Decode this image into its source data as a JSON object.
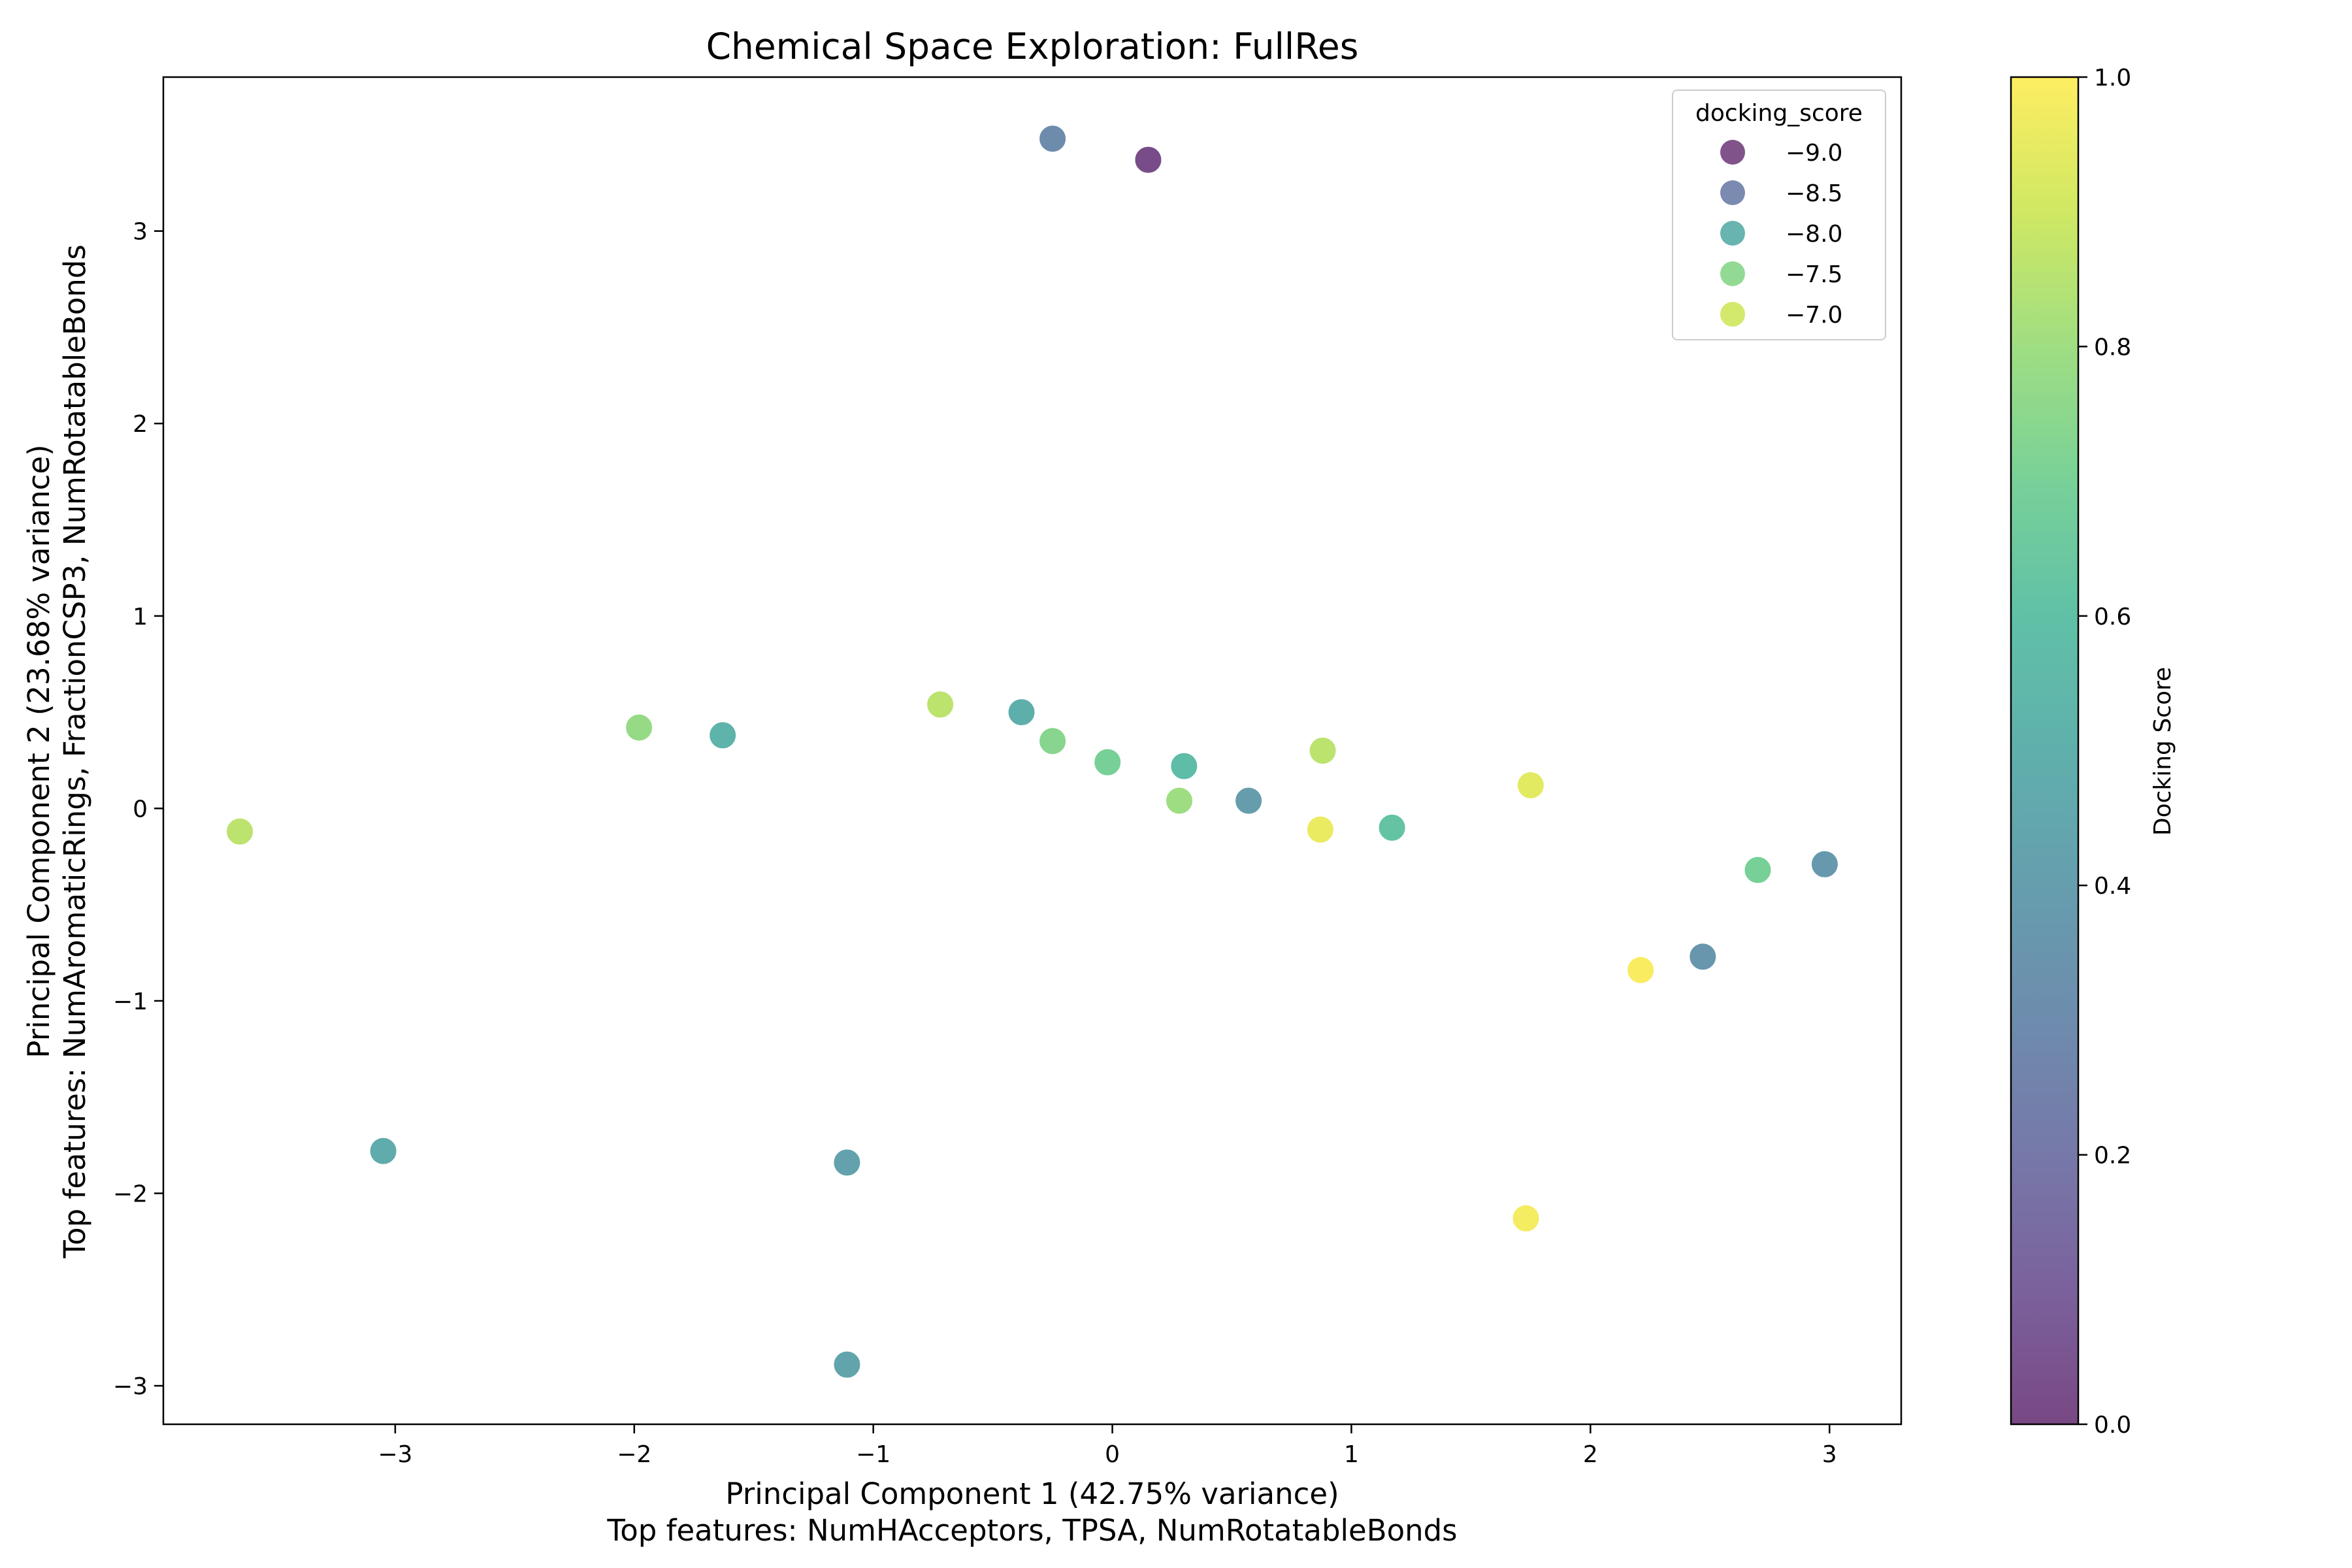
{
  "chart_data": {
    "type": "scatter",
    "title": "Chemical Space Exploration: FullRes",
    "xlabel": "Principal Component 1 (42.75% variance)",
    "xlabel_sub": "Top features: NumHAcceptors, TPSA, NumRotatableBonds",
    "ylabel": "Principal Component 2 (23.68% variance)",
    "ylabel_sub": "Top features: NumAromaticRings, FractionCSP3, NumRotatableBonds",
    "xlim": [
      -3.97,
      3.3
    ],
    "ylim": [
      -3.2,
      3.8
    ],
    "xticks": [
      -3,
      -2,
      -1,
      0,
      1,
      2,
      3
    ],
    "xtick_labels": [
      "−3",
      "−2",
      "−1",
      "0",
      "1",
      "2",
      "3"
    ],
    "yticks": [
      -3,
      -2,
      -1,
      0,
      1,
      2,
      3
    ],
    "ytick_labels": [
      "−3",
      "−2",
      "−1",
      "0",
      "1",
      "2",
      "3"
    ],
    "grid": false,
    "colormap": "viridis",
    "legend": {
      "title": "docking_score",
      "placement": "top-right",
      "entries": [
        {
          "label": "−9.0",
          "color": "#440154"
        },
        {
          "label": "−8.5",
          "color": "#3b528b"
        },
        {
          "label": "−8.0",
          "color": "#21918c"
        },
        {
          "label": "−7.5",
          "color": "#5ec962"
        },
        {
          "label": "−7.0",
          "color": "#bddf26"
        }
      ]
    },
    "colorbar": {
      "label": "Docking Score",
      "range": [
        0.0,
        1.0
      ],
      "ticks": [
        0.0,
        0.2,
        0.4,
        0.6,
        0.8,
        1.0
      ],
      "tick_labels": [
        "0.0",
        "0.2",
        "0.4",
        "0.6",
        "0.8",
        "1.0"
      ]
    },
    "points": [
      {
        "x": -0.25,
        "y": 3.48,
        "c": 0.3
      },
      {
        "x": 0.15,
        "y": 3.37,
        "c": 0.02
      },
      {
        "x": -3.65,
        "y": -0.12,
        "c": 0.86
      },
      {
        "x": -1.98,
        "y": 0.42,
        "c": 0.78
      },
      {
        "x": -1.63,
        "y": 0.38,
        "c": 0.52
      },
      {
        "x": -0.72,
        "y": 0.54,
        "c": 0.86
      },
      {
        "x": -0.38,
        "y": 0.5,
        "c": 0.5
      },
      {
        "x": -0.25,
        "y": 0.35,
        "c": 0.74
      },
      {
        "x": -0.02,
        "y": 0.24,
        "c": 0.7
      },
      {
        "x": 0.28,
        "y": 0.04,
        "c": 0.8
      },
      {
        "x": 0.3,
        "y": 0.22,
        "c": 0.58
      },
      {
        "x": 0.57,
        "y": 0.04,
        "c": 0.4
      },
      {
        "x": 0.87,
        "y": -0.11,
        "c": 0.96
      },
      {
        "x": 0.88,
        "y": 0.3,
        "c": 0.86
      },
      {
        "x": 1.17,
        "y": -0.1,
        "c": 0.62
      },
      {
        "x": 1.75,
        "y": 0.12,
        "c": 0.94
      },
      {
        "x": 2.7,
        "y": -0.32,
        "c": 0.7
      },
      {
        "x": 2.98,
        "y": -0.29,
        "c": 0.38
      },
      {
        "x": 2.21,
        "y": -0.84,
        "c": 0.99
      },
      {
        "x": 2.47,
        "y": -0.77,
        "c": 0.36
      },
      {
        "x": -3.05,
        "y": -1.78,
        "c": 0.48
      },
      {
        "x": -1.11,
        "y": -1.84,
        "c": 0.42
      },
      {
        "x": -1.11,
        "y": -2.89,
        "c": 0.44
      },
      {
        "x": 1.73,
        "y": -2.13,
        "c": 0.98
      }
    ]
  }
}
